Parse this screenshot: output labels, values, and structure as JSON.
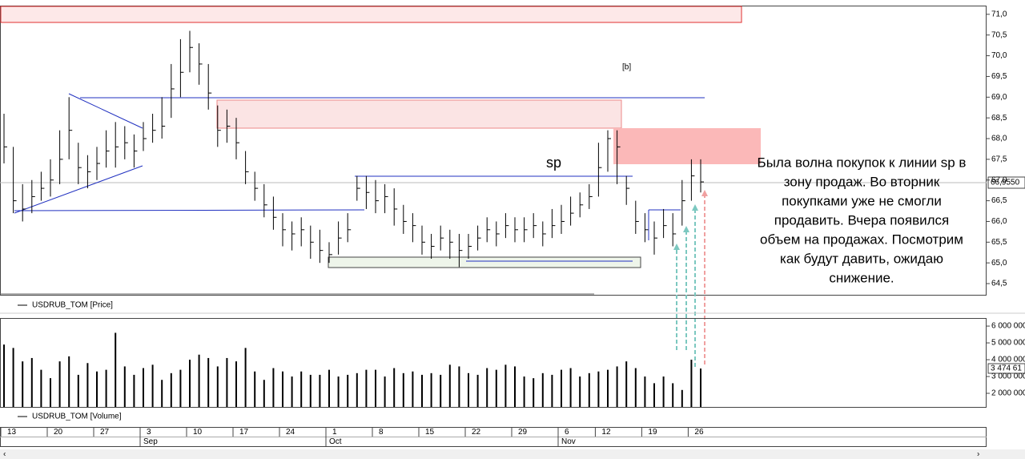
{
  "chart_data": [
    {
      "type": "ohlc",
      "series": [
        {
          "name": "USDRUB_TOM [Price]",
          "color": "#000000",
          "high": [
            68.6,
            67.8,
            66.9,
            67.0,
            67.2,
            67.5,
            68.2,
            69.0,
            67.9,
            67.6,
            67.8,
            68.2,
            68.4,
            68.3,
            68.1,
            68.4,
            68.6,
            69.0,
            69.8,
            70.4,
            70.6,
            70.3,
            69.8,
            68.8,
            68.7,
            68.5,
            67.7,
            67.2,
            66.9,
            66.6,
            66.2,
            66.0,
            66.1,
            65.9,
            65.8,
            65.5,
            66.0,
            66.2,
            67.1,
            67.1,
            67.0,
            66.9,
            66.8,
            66.4,
            66.2,
            65.9,
            65.7,
            65.9,
            65.8,
            65.7,
            65.7,
            65.9,
            66.1,
            66.0,
            66.2,
            66.1,
            66.1,
            66.2,
            66.0,
            66.3,
            66.4,
            66.6,
            66.7,
            66.9,
            67.9,
            68.2,
            68.2,
            67.1,
            66.5,
            66.2,
            66.0,
            66.3,
            66.2,
            67.0,
            67.5,
            67.5
          ],
          "low": [
            67.4,
            66.2,
            66.0,
            66.2,
            66.5,
            66.6,
            66.9,
            67.5,
            66.9,
            66.8,
            67.0,
            67.3,
            67.3,
            67.5,
            67.3,
            67.7,
            67.9,
            68.0,
            68.5,
            69.0,
            69.6,
            69.3,
            68.7,
            67.8,
            67.9,
            67.5,
            66.9,
            66.5,
            66.1,
            65.8,
            65.4,
            65.3,
            65.4,
            65.1,
            65.0,
            65.0,
            65.2,
            65.5,
            66.5,
            66.3,
            66.2,
            66.2,
            65.9,
            65.7,
            65.5,
            65.2,
            65.1,
            65.3,
            65.1,
            64.9,
            65.1,
            65.3,
            65.5,
            65.4,
            65.6,
            65.5,
            65.5,
            65.6,
            65.4,
            65.6,
            65.7,
            65.9,
            66.1,
            66.3,
            66.6,
            67.2,
            66.9,
            66.4,
            65.7,
            65.5,
            65.2,
            65.6,
            65.4,
            65.9,
            66.5,
            66.7
          ],
          "close": [
            67.8,
            66.5,
            66.3,
            66.6,
            66.8,
            67.0,
            67.5,
            68.2,
            67.3,
            67.2,
            67.4,
            67.7,
            67.8,
            67.9,
            67.7,
            68.0,
            68.2,
            68.3,
            69.2,
            69.6,
            70.2,
            69.8,
            69.1,
            68.2,
            68.3,
            67.9,
            67.2,
            66.8,
            66.4,
            66.1,
            65.8,
            65.7,
            65.8,
            65.5,
            65.3,
            65.2,
            65.6,
            65.8,
            66.8,
            66.7,
            66.5,
            66.6,
            66.3,
            66.0,
            65.9,
            65.5,
            65.4,
            65.6,
            65.5,
            65.3,
            65.4,
            65.6,
            65.8,
            65.7,
            65.9,
            65.8,
            65.8,
            65.9,
            65.7,
            65.9,
            66.0,
            66.2,
            66.4,
            66.6,
            67.3,
            68.0,
            67.8,
            66.8,
            66.0,
            65.8,
            65.6,
            65.9,
            65.7,
            66.5,
            67.1,
            66.955
          ]
        }
      ],
      "last_label": "66,9550",
      "ylim": [
        64.23,
        71.21
      ],
      "yticks": [
        {
          "value": 71.0,
          "label": "71,0"
        },
        {
          "value": 70.5,
          "label": "70,5"
        },
        {
          "value": 70.0,
          "label": "70,0"
        },
        {
          "value": 69.5,
          "label": "69,5"
        },
        {
          "value": 69.0,
          "label": "69,0"
        },
        {
          "value": 68.5,
          "label": "68,5"
        },
        {
          "value": 68.0,
          "label": "68,0"
        },
        {
          "value": 67.5,
          "label": "67,5"
        },
        {
          "value": 67.0,
          "label": "67,0"
        },
        {
          "value": 66.5,
          "label": "66,5"
        },
        {
          "value": 66.0,
          "label": "66,0"
        },
        {
          "value": 65.5,
          "label": "65,5"
        },
        {
          "value": 65.0,
          "label": "65,0"
        },
        {
          "value": 64.5,
          "label": "64,5"
        }
      ],
      "annotations": [
        "sp",
        "[b]"
      ],
      "comment": [
        "Была волна покупок к линии sp в",
        "зону продаж. Во вторник",
        "покупками уже не смогли",
        "продавить. Вчера появился",
        "объем на продажах. Посмотрим",
        "как будут давить, ожидаю",
        "снижение."
      ]
    },
    {
      "type": "bar",
      "series": [
        {
          "name": "USDRUB_TOM [Volume]",
          "color": "#000000",
          "values": [
            4900000,
            4700000,
            3900000,
            4100000,
            3400000,
            2900000,
            3900000,
            4200000,
            3100000,
            3800000,
            3300000,
            3400000,
            5600000,
            3600000,
            3100000,
            3500000,
            3700000,
            2800000,
            3200000,
            3400000,
            4000000,
            4300000,
            4100000,
            3600000,
            4100000,
            3900000,
            4700000,
            3300000,
            2800000,
            3500000,
            3300000,
            3000000,
            3300000,
            3100000,
            3100000,
            3400000,
            3000000,
            3100000,
            3200000,
            3400000,
            3400000,
            3000000,
            3500000,
            3200000,
            3300000,
            3100000,
            3200000,
            3100000,
            3700000,
            3600000,
            3200000,
            3100000,
            3500000,
            3400000,
            3700000,
            3600000,
            3000000,
            2900000,
            3200000,
            3100000,
            3400000,
            3500000,
            3000000,
            3200000,
            3300000,
            3400000,
            3600000,
            3900000,
            3500000,
            3000000,
            2600000,
            3000000,
            2600000,
            2200000,
            4000000,
            3474610
          ]
        }
      ],
      "last_label": "3 474 61",
      "ylim": [
        1190000,
        6480000
      ],
      "yticks": [
        {
          "value": 6000000,
          "label": "6 000 000"
        },
        {
          "value": 5000000,
          "label": "5 000 000"
        },
        {
          "value": 4000000,
          "label": "4 000 000"
        },
        {
          "value": 3000000,
          "label": "3 000 000"
        },
        {
          "value": 2000000,
          "label": "2 000 000"
        }
      ],
      "categories": [
        "13",
        null,
        null,
        null,
        null,
        "20",
        null,
        null,
        null,
        null,
        "27",
        null,
        null,
        null,
        null,
        "3",
        null,
        null,
        null,
        null,
        "10",
        null,
        null,
        null,
        null,
        "17",
        null,
        null,
        null,
        null,
        "24",
        null,
        null,
        null,
        null,
        "1",
        null,
        null,
        null,
        null,
        "8",
        null,
        null,
        null,
        null,
        "15",
        null,
        null,
        null,
        null,
        "22",
        null,
        null,
        null,
        null,
        "29",
        null,
        null,
        null,
        null,
        "6",
        null,
        null,
        null,
        "12",
        null,
        null,
        null,
        null,
        "19",
        null,
        null,
        null,
        null,
        "26",
        null
      ],
      "months": [
        null,
        null,
        null,
        null,
        null,
        null,
        null,
        null,
        null,
        null,
        null,
        null,
        null,
        null,
        null,
        "Sep",
        null,
        null,
        null,
        null,
        null,
        null,
        null,
        null,
        null,
        null,
        null,
        null,
        null,
        null,
        null,
        null,
        null,
        null,
        null,
        "Oct",
        null,
        null,
        null,
        null,
        null,
        null,
        null,
        null,
        null,
        null,
        null,
        null,
        null,
        null,
        null,
        null,
        null,
        null,
        null,
        null,
        null,
        null,
        null,
        null,
        "Nov",
        null,
        null,
        null,
        null,
        null,
        null,
        null,
        null,
        null,
        null,
        null,
        null,
        null,
        null,
        null
      ]
    }
  ]
}
